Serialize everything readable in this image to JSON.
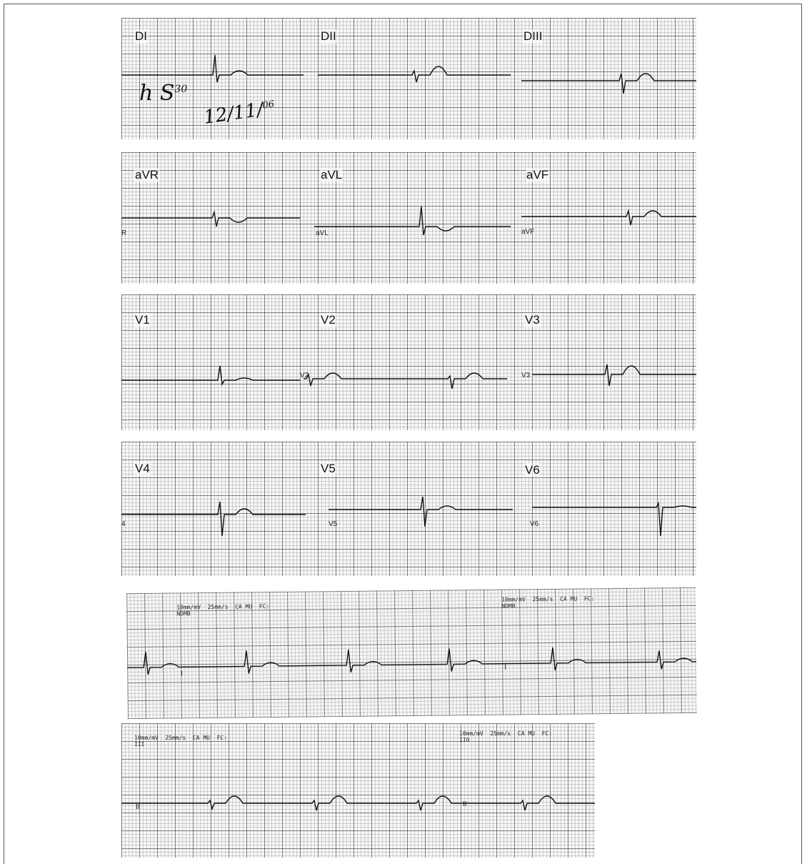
{
  "ecg_12_lead": {
    "rows": [
      {
        "leads": [
          {
            "label": "DI"
          },
          {
            "label": "DII"
          },
          {
            "label": "DIII"
          }
        ]
      },
      {
        "leads": [
          {
            "label": "aVR",
            "mark": "R"
          },
          {
            "label": "aVL",
            "mark": "aVL"
          },
          {
            "label": "aVF",
            "mark": "aVF"
          }
        ]
      },
      {
        "leads": [
          {
            "label": "V1"
          },
          {
            "label": "V2",
            "mark": "V2"
          },
          {
            "label": "V3",
            "mark": "V3"
          }
        ]
      },
      {
        "leads": [
          {
            "label": "V4",
            "mark": "4"
          },
          {
            "label": "V5",
            "mark": "V5"
          },
          {
            "label": "V6",
            "mark": "V6"
          }
        ]
      }
    ],
    "handwriting": {
      "time": "h S",
      "time_sup": "30",
      "date": "12/11/",
      "date_sup": "06"
    }
  },
  "rhythm_strips": [
    {
      "left": {
        "header": "10mm/mV  25mm/s  CA MU  FC:",
        "sub": "NDMB",
        "lead": "I"
      },
      "right": {
        "header": "10mm/mV  25mm/s  CA MU  FC:",
        "sub": "NDMB",
        "lead": "I"
      }
    },
    {
      "left": {
        "header": "10mm/mV  25mm/s  CA MU  FC:",
        "sub": "III",
        "lead": "II"
      },
      "right": {
        "header": "10mm/mV  25mm/s  CA MU  FC:",
        "sub": "IIO",
        "lead": "II"
      }
    }
  ]
}
